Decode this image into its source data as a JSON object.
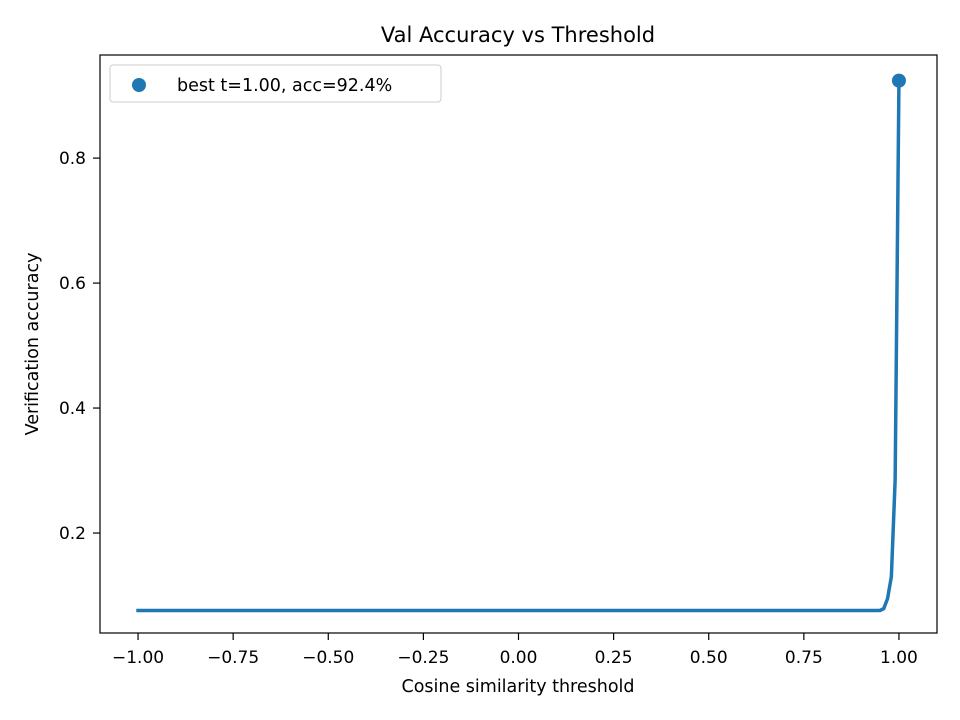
{
  "chart_data": {
    "type": "line",
    "title": "Val Accuracy vs Threshold",
    "xlabel": "Cosine similarity threshold",
    "ylabel": "Verification accuracy",
    "xlim": [
      -1.1,
      1.1
    ],
    "ylim": [
      0.04,
      0.965
    ],
    "x_ticks": [
      -1.0,
      -0.75,
      -0.5,
      -0.25,
      0.0,
      0.25,
      0.5,
      0.75,
      1.0
    ],
    "x_tick_labels": [
      "−1.00",
      "−0.75",
      "−0.50",
      "−0.25",
      "0.00",
      "0.25",
      "0.50",
      "0.75",
      "1.00"
    ],
    "y_ticks": [
      0.2,
      0.4,
      0.6,
      0.8
    ],
    "y_tick_labels": [
      "0.2",
      "0.4",
      "0.6",
      "0.8"
    ],
    "grid": false,
    "legend_position": "top-left",
    "series": [
      {
        "color": "#1f77b4",
        "x": [
          -1.0,
          -0.5,
          0.0,
          0.5,
          0.9,
          0.95,
          0.96,
          0.97,
          0.98,
          0.99,
          1.0
        ],
        "y": [
          0.076,
          0.076,
          0.076,
          0.076,
          0.076,
          0.076,
          0.079,
          0.095,
          0.13,
          0.285,
          0.924
        ]
      }
    ],
    "best_point": {
      "label": "best t=1.00, acc=92.4%",
      "x": 1.0,
      "y": 0.924,
      "color": "#1f77b4"
    }
  }
}
